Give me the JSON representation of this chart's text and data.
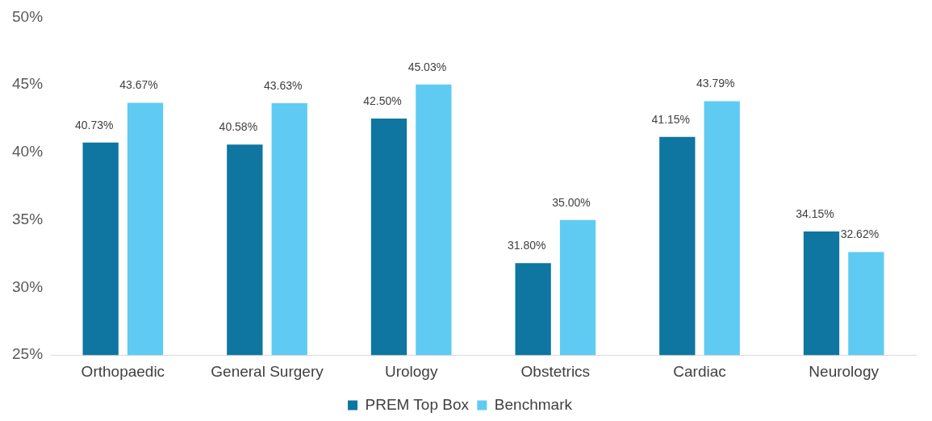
{
  "chart_data": {
    "type": "bar",
    "categories": [
      "Orthopaedic",
      "General Surgery",
      "Urology",
      "Obstetrics",
      "Cardiac",
      "Neurology"
    ],
    "series": [
      {
        "name": "PREM Top Box",
        "color": "#0e76a0",
        "values": [
          40.73,
          40.58,
          42.5,
          31.8,
          41.15,
          34.15
        ],
        "value_labels": [
          "40.73%",
          "40.58%",
          "42.50%",
          "31.80%",
          "41.15%",
          "34.15%"
        ]
      },
      {
        "name": "Benchmark",
        "color": "#5fcbf3",
        "values": [
          43.67,
          43.63,
          45.03,
          35.0,
          43.79,
          32.62
        ],
        "value_labels": [
          "43.67%",
          "43.63%",
          "45.03%",
          "35.00%",
          "43.79%",
          "32.62%"
        ]
      }
    ],
    "ylim": [
      25,
      50
    ],
    "yticks": [
      {
        "value": 25,
        "label": "25%"
      },
      {
        "value": 30,
        "label": "30%"
      },
      {
        "value": 35,
        "label": "35%"
      },
      {
        "value": 40,
        "label": "40%"
      },
      {
        "value": 45,
        "label": "45%"
      },
      {
        "value": 50,
        "label": "50%"
      }
    ],
    "grid": false,
    "legend": "bottom"
  }
}
